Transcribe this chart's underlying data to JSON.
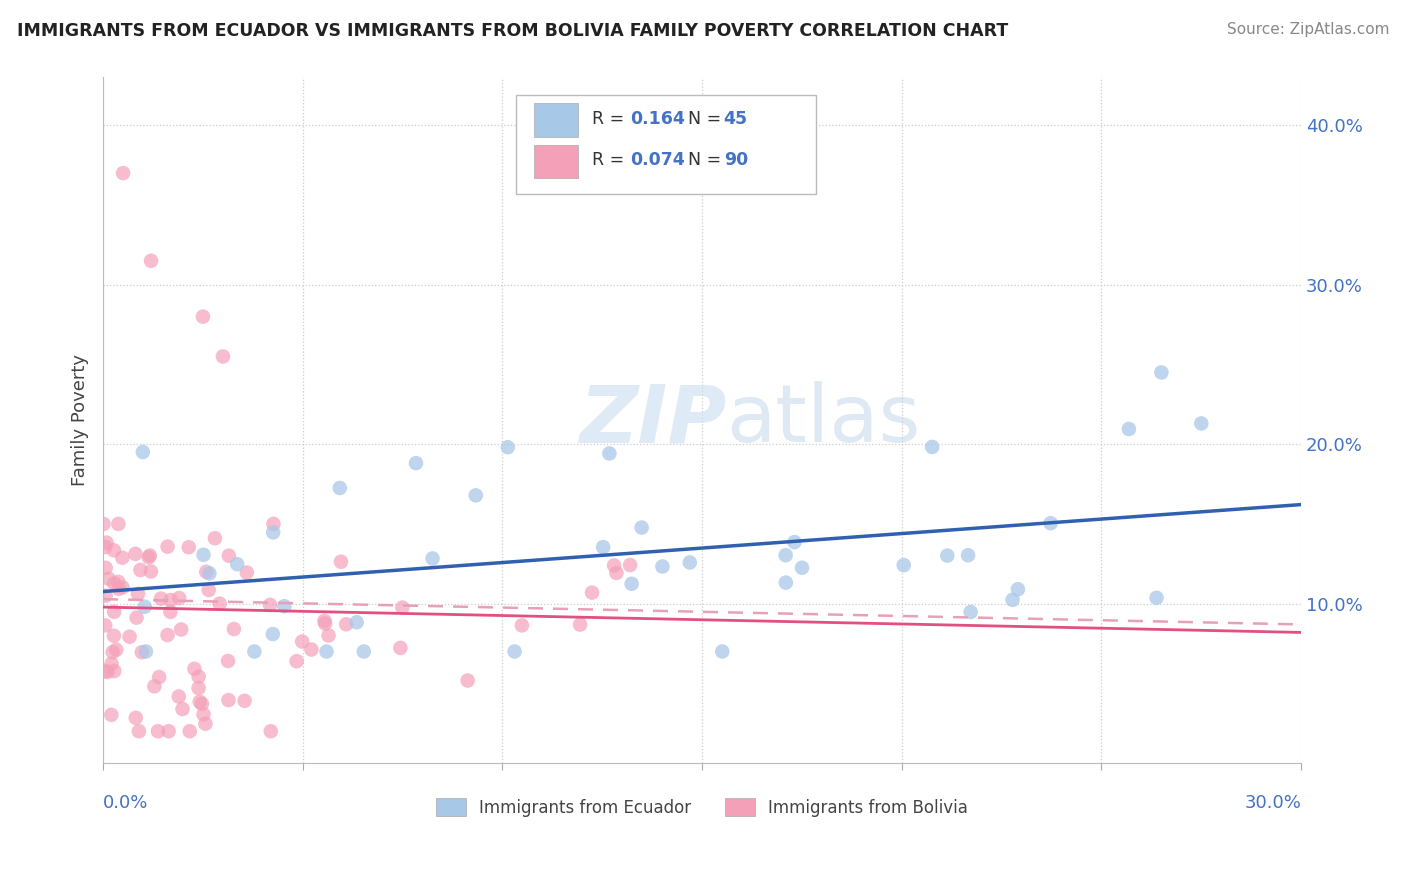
{
  "title": "IMMIGRANTS FROM ECUADOR VS IMMIGRANTS FROM BOLIVIA FAMILY POVERTY CORRELATION CHART",
  "source": "Source: ZipAtlas.com",
  "ylabel": "Family Poverty",
  "xlim": [
    0.0,
    0.3
  ],
  "ylim": [
    0.0,
    0.43
  ],
  "yticks": [
    0.1,
    0.2,
    0.3,
    0.4
  ],
  "ytick_labels": [
    "10.0%",
    "20.0%",
    "30.0%",
    "40.0%"
  ],
  "legend_r1": "0.164",
  "legend_n1": "45",
  "legend_r2": "0.074",
  "legend_n2": "90",
  "color_ecuador": "#a8c8e8",
  "color_bolivia": "#f4a0b8",
  "color_ecuador_line": "#3060b0",
  "color_bolivia_line": "#e05080",
  "color_bolivia_dashed": "#e8a0b8",
  "watermark_zip": "ZIP",
  "watermark_atlas": "atlas",
  "grid_color": "#cccccc",
  "title_color": "#222222",
  "source_color": "#888888",
  "tick_color": "#4472c4"
}
